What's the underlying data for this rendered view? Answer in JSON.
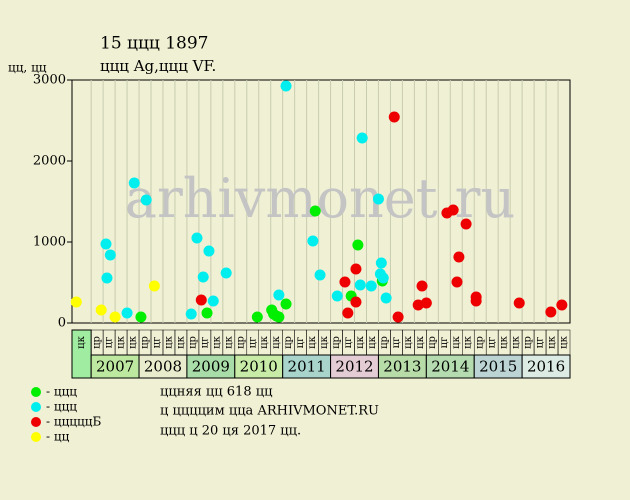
{
  "chart_data": {
    "type": "scatter",
    "title": "15 ццц 1897",
    "subtitle": "ццц Ag,ццц VF.",
    "y_label": "цц, цц",
    "watermark": "arhivmonet.ru",
    "xlim": [
      2006.6,
      2017
    ],
    "ylim": [
      0,
      3000
    ],
    "yticks": [
      0,
      1000,
      2000,
      3000
    ],
    "years": [
      2007,
      2008,
      2009,
      2010,
      2011,
      2012,
      2013,
      2014,
      2015,
      2016
    ],
    "year_colors": [
      "#bde8a0",
      "#e8eccc",
      "#a8dca8",
      "#c8eca8",
      "#a8d4cc",
      "#e4ccd4",
      "#b8dca8",
      "#b4dcb0",
      "#bcd4d4",
      "#dcece4"
    ],
    "first_column_label": "цк",
    "column_labels": [
      "цр",
      "цг",
      "цк",
      "цк",
      "цр",
      "цг",
      "цк",
      "цк",
      "цр",
      "цг",
      "цк",
      "цк",
      "цр",
      "цг",
      "цк",
      "цк",
      "цр",
      "цг",
      "цк",
      "цк",
      "цр",
      "цг",
      "цк",
      "цк",
      "цр",
      "цг",
      "цк",
      "цк",
      "цр",
      "цг",
      "цк",
      "цк",
      "цр",
      "цг",
      "цк",
      "цк",
      "цр",
      "цг",
      "цк",
      "цк"
    ],
    "series": [
      {
        "name": "- ццц",
        "color": "#00ee00",
        "x": [
          2008.04,
          2009.42,
          2010.47,
          2010.77,
          2010.81,
          2010.87,
          2010.92,
          2011.07,
          2011.68,
          2012.43,
          2012.57,
          2013.08
        ],
        "values": [
          74,
          123,
          74,
          160,
          111,
          86,
          74,
          235,
          1383,
          333,
          963,
          519
        ]
      },
      {
        "name": "- ццц",
        "color": "#00eeee",
        "x": [
          2007.31,
          2007.4,
          2007.33,
          2007.75,
          2007.9,
          2008.15,
          2009.09,
          2009.21,
          2009.34,
          2009.46,
          2009.55,
          2009.82,
          2010.92,
          2011.07,
          2011.63,
          2011.78,
          2012.14,
          2012.62,
          2012.66,
          2012.85,
          2013.0,
          2013.06,
          2013.04,
          2013.1,
          2013.16
        ],
        "values": [
          975,
          840,
          556,
          123,
          1728,
          1519,
          111,
          1049,
          568,
          889,
          272,
          617,
          346,
          2926,
          1012,
          593,
          333,
          469,
          2284,
          457,
          1531,
          741,
          605,
          556,
          309
        ]
      },
      {
        "name": "- цццццБ",
        "color": "#ee0000",
        "x": [
          2009.3,
          2012.3,
          2012.36,
          2012.53,
          2012.53,
          2013.33,
          2013.41,
          2013.83,
          2013.91,
          2014.0,
          2014.43,
          2014.56,
          2014.64,
          2014.68,
          2014.83,
          2015.04,
          2015.04,
          2015.94,
          2016.6,
          2016.83
        ],
        "values": [
          284,
          506,
          123,
          667,
          259,
          2543,
          74,
          222,
          457,
          247,
          1358,
          1395,
          506,
          815,
          1222,
          321,
          272,
          247,
          136,
          222
        ]
      },
      {
        "name": "- цц",
        "color": "#ffff00",
        "x": [
          2006.69,
          2007.21,
          2007.5,
          2008.32
        ],
        "values": [
          259,
          160,
          74,
          457
        ]
      }
    ],
    "notes": [
      "ццняя цц 618 цц",
      "ц ццццим цца ARHIVMONET.RU",
      "ццц ц 20 ця 2017 цц."
    ]
  }
}
